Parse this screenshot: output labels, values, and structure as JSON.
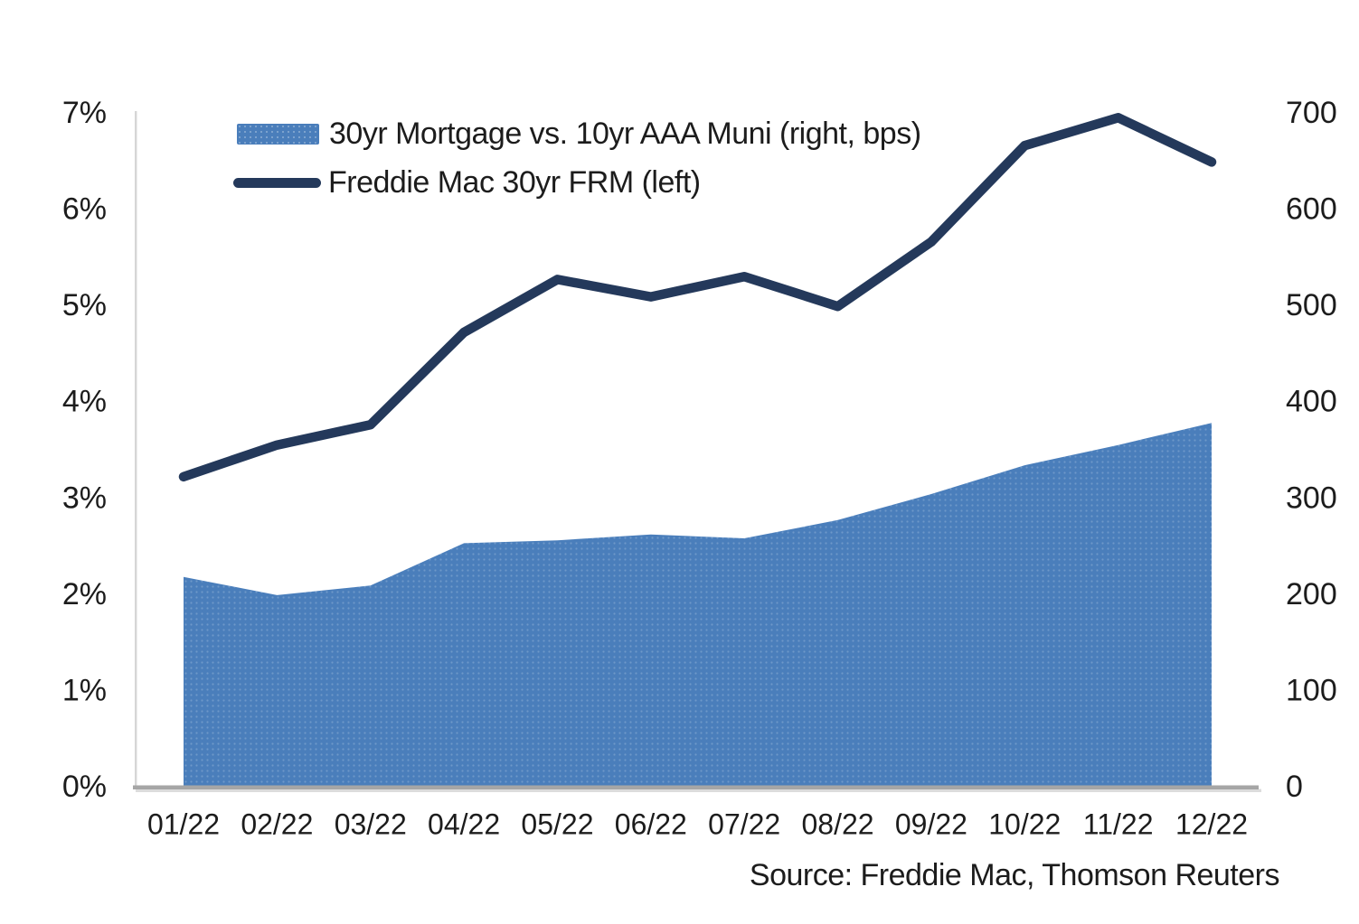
{
  "chart_data": {
    "type": "area",
    "subtype": "combo-area-line-dual-axis",
    "categories": [
      "01/22",
      "02/22",
      "03/22",
      "04/22",
      "05/22",
      "06/22",
      "07/22",
      "08/22",
      "09/22",
      "10/22",
      "11/22",
      "12/22"
    ],
    "series": [
      {
        "name": "30yr Mortgage vs. 10yr AAA Muni (right, bps)",
        "type": "area",
        "axis": "right",
        "color": "#4A7EBB",
        "values": [
          218,
          199,
          209,
          253,
          256,
          262,
          258,
          277,
          304,
          334,
          355,
          378
        ]
      },
      {
        "name": "Freddie Mac 30yr FRM (left)",
        "type": "line",
        "axis": "left",
        "color": "#24395B",
        "values": [
          3.22,
          3.55,
          3.76,
          4.72,
          5.27,
          5.09,
          5.3,
          4.99,
          5.66,
          6.66,
          6.95,
          6.49
        ]
      }
    ],
    "left_axis": {
      "min": 0,
      "max": 7,
      "ticks": [
        "0%",
        "1%",
        "2%",
        "3%",
        "4%",
        "5%",
        "6%",
        "7%"
      ]
    },
    "right_axis": {
      "min": 0,
      "max": 700,
      "ticks": [
        "0",
        "100",
        "200",
        "300",
        "400",
        "500",
        "600",
        "700"
      ]
    },
    "grid": false,
    "legend_position": "top-left-inside",
    "source": "Source: Freddie Mac, Thomson Reuters",
    "axis_line_color": "#D6D6D6",
    "baseline_color": "#A6A6A6",
    "tick_text_color": "#1c1c1c"
  }
}
